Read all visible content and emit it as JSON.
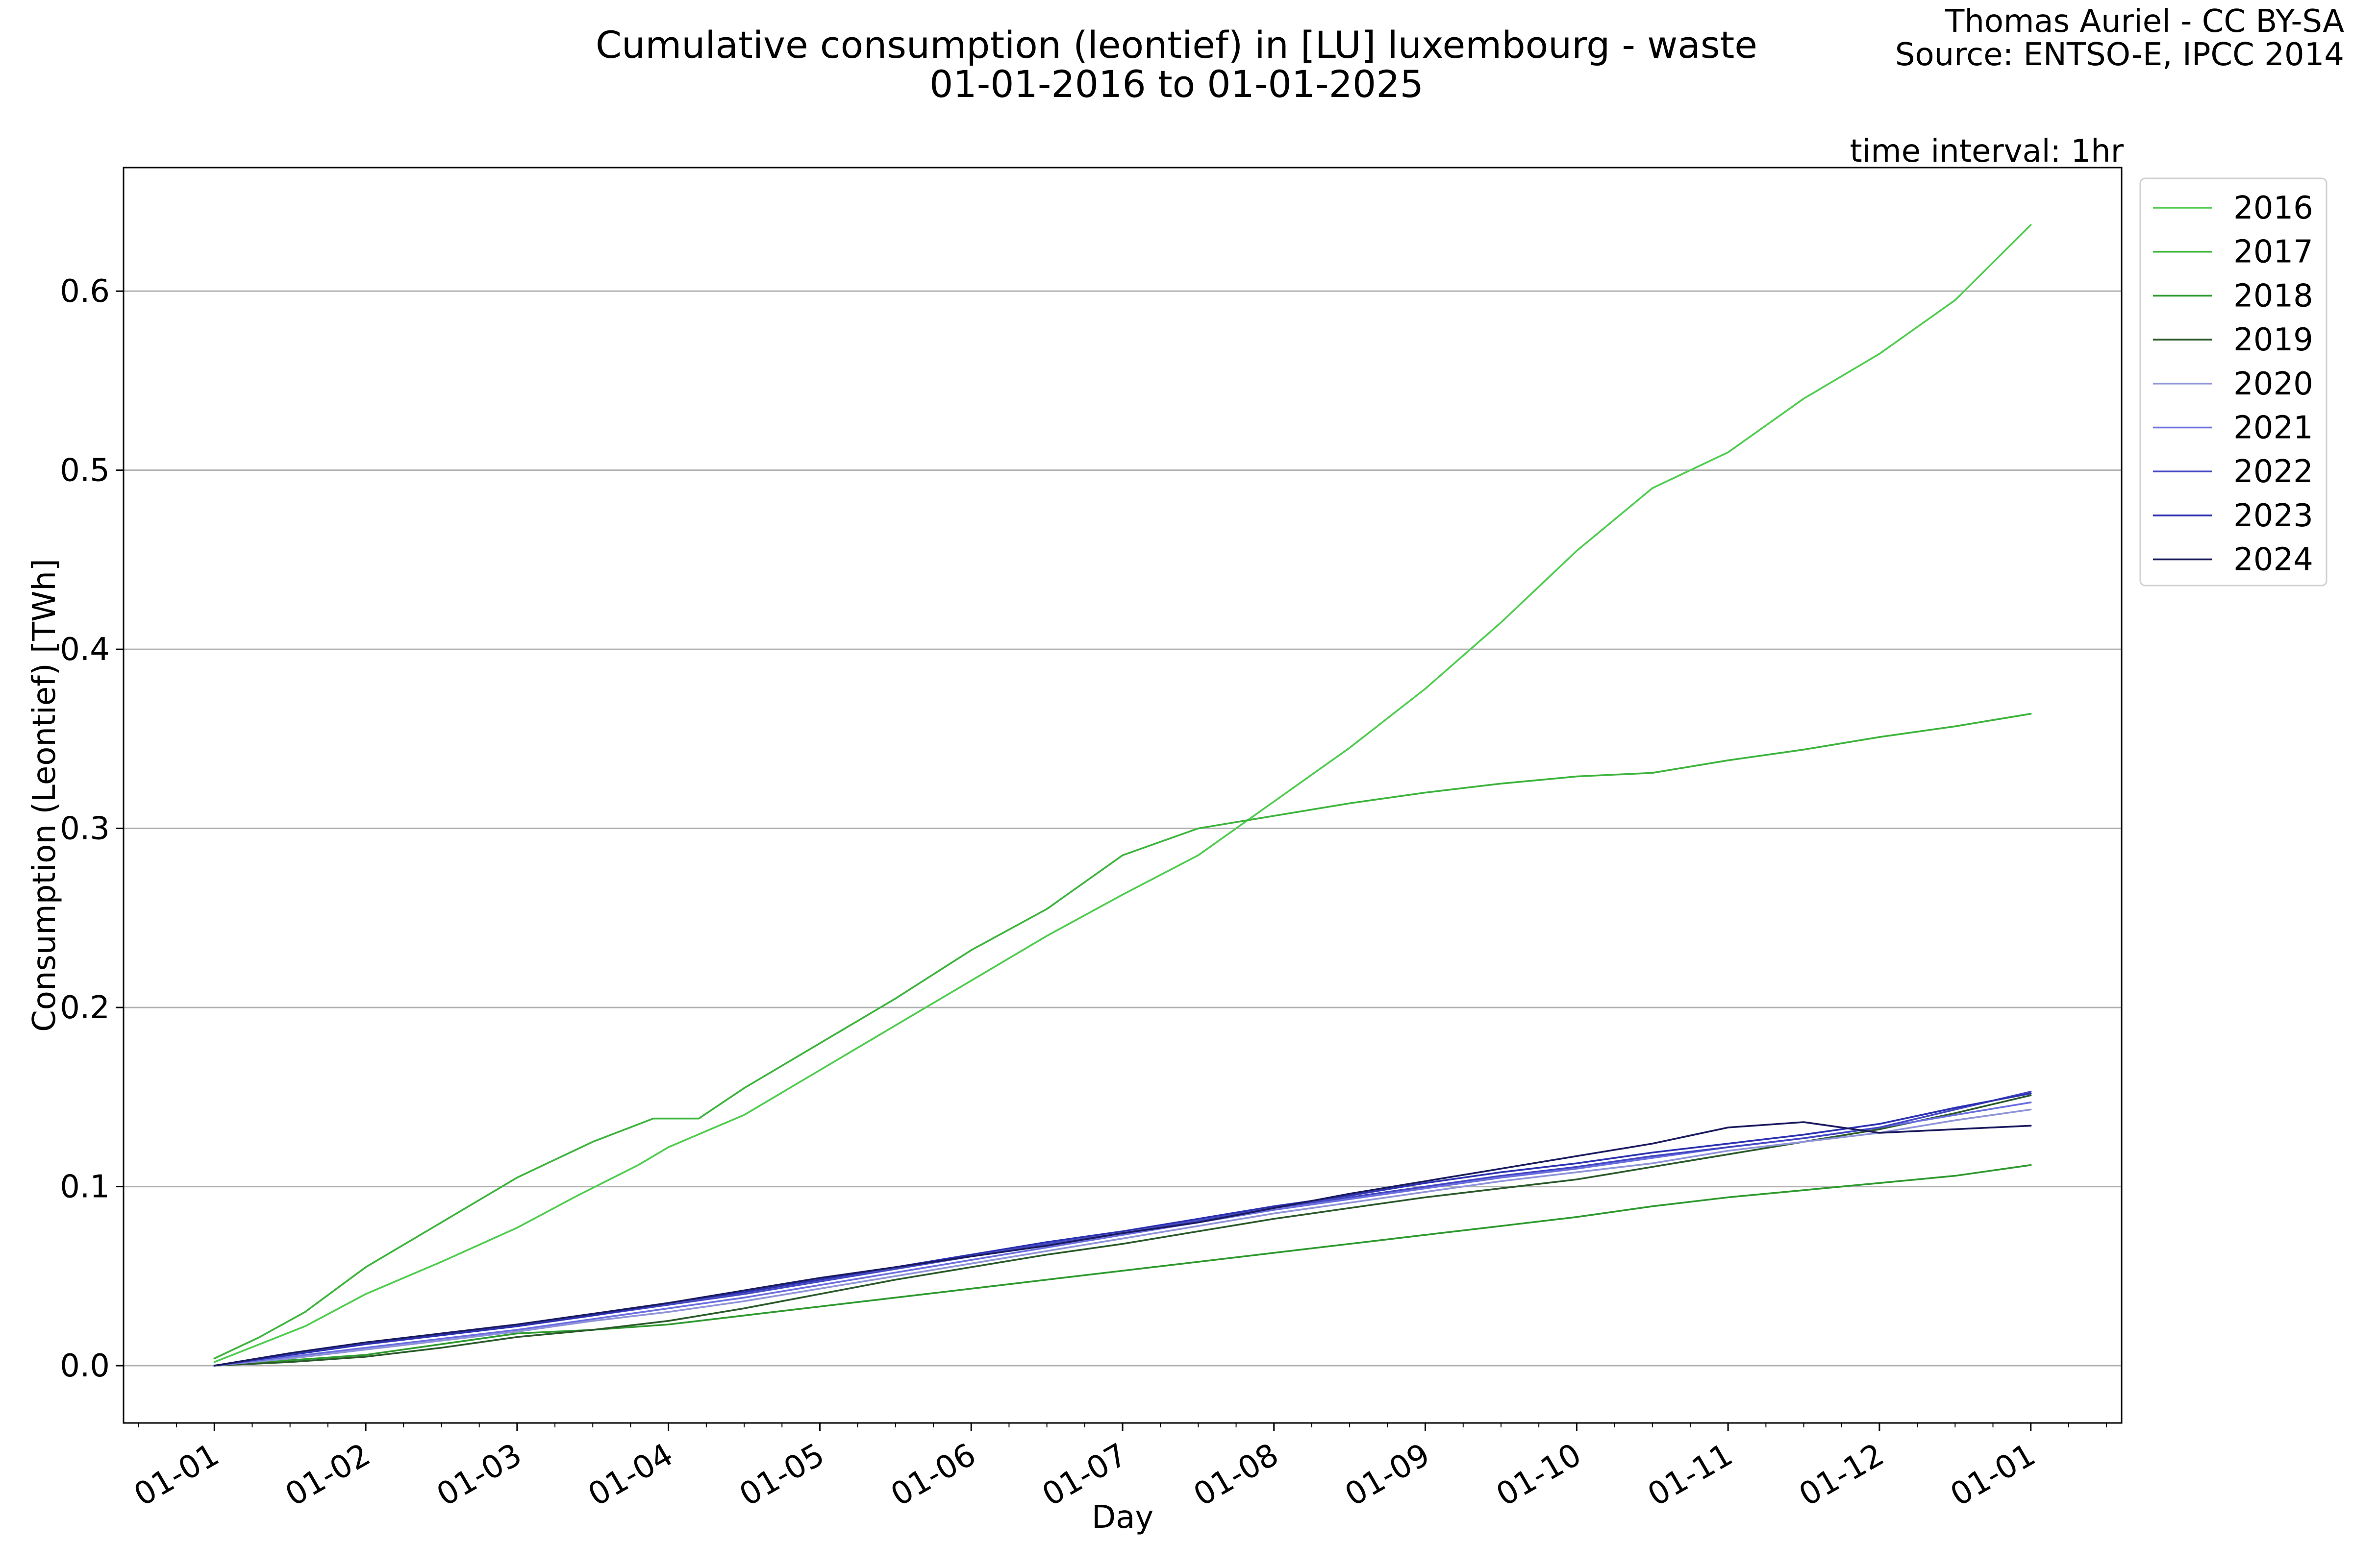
{
  "chart_data": {
    "type": "line",
    "title": "Cumulative consumption (leontief) in [LU] luxembourg - waste",
    "subtitle": "01-01-2016 to 01-01-2025",
    "credit": [
      "Thomas Auriel - CC BY-SA",
      "Source: ENTSO-E, IPCC 2014"
    ],
    "annotation": "time interval: 1hr",
    "xlabel": "Day",
    "ylabel": "Consumption (Leontief) [TWh]",
    "xlim": [
      -0.6,
      12.6
    ],
    "ylim": [
      -0.032,
      0.669
    ],
    "x_ticks": [
      0,
      1,
      2,
      3,
      4,
      5,
      6,
      7,
      8,
      9,
      10,
      11,
      12
    ],
    "x_tick_labels": [
      "01-01",
      "01-02",
      "01-03",
      "01-04",
      "01-05",
      "01-06",
      "01-07",
      "01-08",
      "01-09",
      "01-10",
      "01-11",
      "01-12",
      "01-01"
    ],
    "y_ticks": [
      0.0,
      0.1,
      0.2,
      0.3,
      0.4,
      0.5,
      0.6
    ],
    "y_tick_labels": [
      "0.0",
      "0.1",
      "0.2",
      "0.3",
      "0.4",
      "0.5",
      "0.6"
    ],
    "x_unit": "month offset from 01-01",
    "grid": "horizontal",
    "legend_position": "outside-right",
    "series": [
      {
        "name": "2016",
        "color": "#4fcc4f",
        "points": [
          [
            0,
            0.002
          ],
          [
            0.3,
            0.012
          ],
          [
            0.6,
            0.022
          ],
          [
            1,
            0.04
          ],
          [
            1.5,
            0.058
          ],
          [
            2,
            0.077
          ],
          [
            2.4,
            0.095
          ],
          [
            2.8,
            0.112
          ],
          [
            3,
            0.122
          ],
          [
            3.5,
            0.14
          ],
          [
            4,
            0.165
          ],
          [
            4.5,
            0.19
          ],
          [
            5,
            0.215
          ],
          [
            5.5,
            0.24
          ],
          [
            6,
            0.263
          ],
          [
            6.5,
            0.285
          ],
          [
            7,
            0.315
          ],
          [
            7.5,
            0.345
          ],
          [
            8,
            0.378
          ],
          [
            8.5,
            0.415
          ],
          [
            9,
            0.455
          ],
          [
            9.5,
            0.49
          ],
          [
            10,
            0.51
          ],
          [
            10.5,
            0.54
          ],
          [
            11,
            0.565
          ],
          [
            11.5,
            0.595
          ],
          [
            12,
            0.637
          ]
        ]
      },
      {
        "name": "2017",
        "color": "#3cb43c",
        "points": [
          [
            0,
            0.004
          ],
          [
            0.3,
            0.016
          ],
          [
            0.6,
            0.03
          ],
          [
            1,
            0.055
          ],
          [
            1.5,
            0.08
          ],
          [
            2,
            0.105
          ],
          [
            2.5,
            0.125
          ],
          [
            2.9,
            0.138
          ],
          [
            3,
            0.138
          ],
          [
            3.2,
            0.138
          ],
          [
            3.5,
            0.155
          ],
          [
            4,
            0.18
          ],
          [
            4.5,
            0.205
          ],
          [
            5,
            0.232
          ],
          [
            5.5,
            0.255
          ],
          [
            6,
            0.285
          ],
          [
            6.5,
            0.3
          ],
          [
            7,
            0.307
          ],
          [
            7.5,
            0.314
          ],
          [
            8,
            0.32
          ],
          [
            8.5,
            0.325
          ],
          [
            9,
            0.329
          ],
          [
            9.5,
            0.331
          ],
          [
            10,
            0.338
          ],
          [
            10.5,
            0.344
          ],
          [
            11,
            0.351
          ],
          [
            11.5,
            0.357
          ],
          [
            12,
            0.364
          ]
        ]
      },
      {
        "name": "2018",
        "color": "#2e9a2e",
        "points": [
          [
            0,
            0
          ],
          [
            0.5,
            0.003
          ],
          [
            1,
            0.006
          ],
          [
            1.5,
            0.012
          ],
          [
            2,
            0.018
          ],
          [
            2.5,
            0.02
          ],
          [
            3,
            0.023
          ],
          [
            3.5,
            0.028
          ],
          [
            4,
            0.033
          ],
          [
            4.5,
            0.038
          ],
          [
            5,
            0.043
          ],
          [
            5.5,
            0.048
          ],
          [
            6,
            0.053
          ],
          [
            6.5,
            0.058
          ],
          [
            7,
            0.063
          ],
          [
            7.5,
            0.068
          ],
          [
            8,
            0.073
          ],
          [
            8.5,
            0.078
          ],
          [
            9,
            0.083
          ],
          [
            9.5,
            0.089
          ],
          [
            10,
            0.094
          ],
          [
            10.5,
            0.098
          ],
          [
            11,
            0.102
          ],
          [
            11.5,
            0.106
          ],
          [
            12,
            0.112
          ]
        ]
      },
      {
        "name": "2019",
        "color": "#2a5a2a",
        "points": [
          [
            0,
            0
          ],
          [
            0.5,
            0.002
          ],
          [
            1,
            0.005
          ],
          [
            1.5,
            0.01
          ],
          [
            2,
            0.016
          ],
          [
            2.5,
            0.02
          ],
          [
            3,
            0.025
          ],
          [
            3.5,
            0.032
          ],
          [
            4,
            0.04
          ],
          [
            4.5,
            0.048
          ],
          [
            5,
            0.055
          ],
          [
            5.5,
            0.062
          ],
          [
            6,
            0.068
          ],
          [
            6.5,
            0.075
          ],
          [
            7,
            0.082
          ],
          [
            7.5,
            0.088
          ],
          [
            8,
            0.094
          ],
          [
            8.5,
            0.099
          ],
          [
            9,
            0.104
          ],
          [
            9.5,
            0.111
          ],
          [
            10,
            0.118
          ],
          [
            10.5,
            0.125
          ],
          [
            11,
            0.132
          ],
          [
            11.5,
            0.141
          ],
          [
            12,
            0.151
          ]
        ]
      },
      {
        "name": "2020",
        "color": "#8f93d8",
        "points": [
          [
            0,
            0
          ],
          [
            0.5,
            0.004
          ],
          [
            1,
            0.009
          ],
          [
            1.5,
            0.014
          ],
          [
            2,
            0.019
          ],
          [
            2.5,
            0.025
          ],
          [
            3,
            0.03
          ],
          [
            3.5,
            0.036
          ],
          [
            4,
            0.043
          ],
          [
            4.5,
            0.05
          ],
          [
            5,
            0.057
          ],
          [
            5.5,
            0.064
          ],
          [
            6,
            0.071
          ],
          [
            6.5,
            0.078
          ],
          [
            7,
            0.085
          ],
          [
            7.5,
            0.091
          ],
          [
            8,
            0.097
          ],
          [
            8.5,
            0.103
          ],
          [
            9,
            0.108
          ],
          [
            9.5,
            0.113
          ],
          [
            10,
            0.12
          ],
          [
            10.5,
            0.125
          ],
          [
            11,
            0.13
          ],
          [
            11.5,
            0.137
          ],
          [
            12,
            0.143
          ]
        ]
      },
      {
        "name": "2021",
        "color": "#6a6ee0",
        "points": [
          [
            0,
            0
          ],
          [
            0.5,
            0.005
          ],
          [
            1,
            0.01
          ],
          [
            1.5,
            0.015
          ],
          [
            2,
            0.02
          ],
          [
            2.5,
            0.026
          ],
          [
            3,
            0.032
          ],
          [
            3.5,
            0.038
          ],
          [
            4,
            0.045
          ],
          [
            4.5,
            0.052
          ],
          [
            5,
            0.059
          ],
          [
            5.5,
            0.066
          ],
          [
            6,
            0.073
          ],
          [
            6.5,
            0.08
          ],
          [
            7,
            0.087
          ],
          [
            7.5,
            0.093
          ],
          [
            8,
            0.099
          ],
          [
            8.5,
            0.105
          ],
          [
            9,
            0.11
          ],
          [
            9.5,
            0.116
          ],
          [
            10,
            0.122
          ],
          [
            10.5,
            0.127
          ],
          [
            11,
            0.133
          ],
          [
            11.5,
            0.14
          ],
          [
            12,
            0.147
          ]
        ]
      },
      {
        "name": "2022",
        "color": "#4347c2",
        "points": [
          [
            0,
            0
          ],
          [
            0.5,
            0.006
          ],
          [
            1,
            0.012
          ],
          [
            1.5,
            0.017
          ],
          [
            2,
            0.022
          ],
          [
            2.5,
            0.028
          ],
          [
            3,
            0.034
          ],
          [
            3.5,
            0.04
          ],
          [
            4,
            0.047
          ],
          [
            4.5,
            0.054
          ],
          [
            5,
            0.061
          ],
          [
            5.5,
            0.068
          ],
          [
            6,
            0.074
          ],
          [
            6.5,
            0.081
          ],
          [
            7,
            0.088
          ],
          [
            7.5,
            0.094
          ],
          [
            8,
            0.1
          ],
          [
            8.5,
            0.106
          ],
          [
            9,
            0.111
          ],
          [
            9.5,
            0.117
          ],
          [
            10,
            0.122
          ],
          [
            10.5,
            0.127
          ],
          [
            11,
            0.133
          ],
          [
            11.5,
            0.143
          ],
          [
            12,
            0.153
          ]
        ]
      },
      {
        "name": "2023",
        "color": "#2b30b0",
        "points": [
          [
            0,
            0
          ],
          [
            0.5,
            0.006
          ],
          [
            1,
            0.012
          ],
          [
            1.5,
            0.017
          ],
          [
            2,
            0.022
          ],
          [
            2.5,
            0.028
          ],
          [
            3,
            0.035
          ],
          [
            3.5,
            0.041
          ],
          [
            4,
            0.048
          ],
          [
            4.5,
            0.055
          ],
          [
            5,
            0.062
          ],
          [
            5.5,
            0.069
          ],
          [
            6,
            0.075
          ],
          [
            6.5,
            0.082
          ],
          [
            7,
            0.089
          ],
          [
            7.5,
            0.095
          ],
          [
            8,
            0.102
          ],
          [
            8.5,
            0.108
          ],
          [
            9,
            0.113
          ],
          [
            9.5,
            0.119
          ],
          [
            10,
            0.124
          ],
          [
            10.5,
            0.129
          ],
          [
            11,
            0.135
          ],
          [
            11.5,
            0.144
          ],
          [
            12,
            0.152
          ]
        ]
      },
      {
        "name": "2024",
        "color": "#1a1a5e",
        "points": [
          [
            0,
            0
          ],
          [
            0.5,
            0.007
          ],
          [
            1,
            0.013
          ],
          [
            1.5,
            0.018
          ],
          [
            2,
            0.023
          ],
          [
            2.5,
            0.029
          ],
          [
            3,
            0.035
          ],
          [
            3.5,
            0.042
          ],
          [
            4,
            0.049
          ],
          [
            4.5,
            0.055
          ],
          [
            5,
            0.061
          ],
          [
            5.5,
            0.067
          ],
          [
            6,
            0.074
          ],
          [
            6.5,
            0.08
          ],
          [
            7,
            0.088
          ],
          [
            7.5,
            0.096
          ],
          [
            8,
            0.103
          ],
          [
            8.5,
            0.11
          ],
          [
            9,
            0.117
          ],
          [
            9.5,
            0.124
          ],
          [
            10,
            0.133
          ],
          [
            10.5,
            0.136
          ],
          [
            11,
            0.13
          ],
          [
            11.5,
            0.132
          ],
          [
            12,
            0.134
          ]
        ]
      }
    ]
  }
}
